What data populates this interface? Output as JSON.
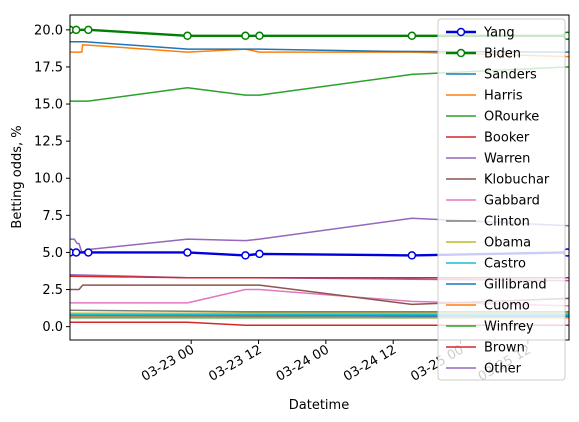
{
  "chart_data": {
    "type": "line",
    "xlabel": "Datetime",
    "ylabel": "Betting odds, %",
    "x_range": [
      "2019-03-22 02:24",
      "2019-03-25 19:20"
    ],
    "y_range": [
      -0.9,
      21.0
    ],
    "yticks": [
      {
        "value": 0.0,
        "label": "0.0"
      },
      {
        "value": 2.5,
        "label": "2.5"
      },
      {
        "value": 5.0,
        "label": "5.0"
      },
      {
        "value": 7.5,
        "label": "7.5"
      },
      {
        "value": 10.0,
        "label": "10.0"
      },
      {
        "value": 12.5,
        "label": "12.5"
      },
      {
        "value": 15.0,
        "label": "15.0"
      },
      {
        "value": 17.5,
        "label": "17.5"
      },
      {
        "value": 20.0,
        "label": "20.0"
      }
    ],
    "xticks": [
      {
        "value": "2019-03-23 00:00",
        "label": "03-23 00"
      },
      {
        "value": "2019-03-23 12:00",
        "label": "03-23 12"
      },
      {
        "value": "2019-03-24 00:00",
        "label": "03-24 00"
      },
      {
        "value": "2019-03-24 12:00",
        "label": "03-24 12"
      },
      {
        "value": "2019-03-25 00:00",
        "label": "03-25 00"
      },
      {
        "value": "2019-03-25 12:00",
        "label": "03-25 12"
      }
    ],
    "grid": false,
    "legend": "upper right",
    "series": [
      {
        "name": "Yang",
        "color": "#0000dd",
        "lw": 2.4,
        "markers": true,
        "x": [
          "2019-03-22 02:24",
          "2019-03-22 03:30",
          "2019-03-22 05:40",
          "2019-03-22 23:20",
          "2019-03-23 09:40",
          "2019-03-23 12:10",
          "2019-03-24 15:20",
          "2019-03-25 19:00"
        ],
        "y": [
          5.0,
          5.0,
          5.0,
          5.0,
          4.8,
          4.9,
          4.8,
          5.0
        ]
      },
      {
        "name": "Biden",
        "color": "#008000",
        "lw": 2.4,
        "markers": true,
        "x": [
          "2019-03-22 02:24",
          "2019-03-22 03:30",
          "2019-03-22 05:40",
          "2019-03-22 23:20",
          "2019-03-23 09:40",
          "2019-03-23 12:10",
          "2019-03-24 15:20",
          "2019-03-25 19:00"
        ],
        "y": [
          20.0,
          20.0,
          20.0,
          19.6,
          19.6,
          19.6,
          19.6,
          19.6
        ]
      },
      {
        "name": "Sanders",
        "color": "#1f77b4",
        "lw": 1.5,
        "markers": false,
        "x": [
          "2019-03-22 02:24",
          "2019-03-22 05:00",
          "2019-03-22 23:20",
          "2019-03-23 12:00",
          "2019-03-24 12:00",
          "2019-03-25 19:20"
        ],
        "y": [
          19.2,
          19.2,
          18.7,
          18.7,
          18.55,
          18.5
        ]
      },
      {
        "name": "Harris",
        "color": "#ff7f0e",
        "lw": 1.5,
        "markers": false,
        "x": [
          "2019-03-22 02:24",
          "2019-03-22 04:30",
          "2019-03-22 04:40",
          "2019-03-22 23:20",
          "2019-03-23 09:40",
          "2019-03-23 12:10",
          "2019-03-24 15:20",
          "2019-03-25 19:20"
        ],
        "y": [
          18.5,
          18.5,
          19.0,
          18.5,
          18.7,
          18.5,
          18.5,
          18.2
        ]
      },
      {
        "name": "ORourke",
        "color": "#2ca02c",
        "lw": 1.5,
        "markers": false,
        "x": [
          "2019-03-22 02:24",
          "2019-03-22 05:40",
          "2019-03-22 23:20",
          "2019-03-23 09:40",
          "2019-03-23 12:10",
          "2019-03-24 15:20",
          "2019-03-25 19:20"
        ],
        "y": [
          15.2,
          15.2,
          16.1,
          15.6,
          15.6,
          17.0,
          17.5
        ]
      },
      {
        "name": "Booker",
        "color": "#d62728",
        "lw": 1.5,
        "markers": false,
        "x": [
          "2019-03-22 02:24",
          "2019-03-22 23:20",
          "2019-03-23 09:40",
          "2019-03-25 19:20"
        ],
        "y": [
          3.4,
          3.3,
          3.3,
          3.3
        ]
      },
      {
        "name": "Warren",
        "color": "#9467bd",
        "lw": 1.5,
        "markers": false,
        "x": [
          "2019-03-22 02:24",
          "2019-03-22 23:20",
          "2019-03-23 09:40",
          "2019-03-24 15:20",
          "2019-03-25 19:20"
        ],
        "y": [
          3.5,
          3.3,
          3.3,
          3.2,
          3.1
        ]
      },
      {
        "name": "Klobuchar",
        "color": "#8c564b",
        "lw": 1.5,
        "markers": false,
        "x": [
          "2019-03-22 02:24",
          "2019-03-22 04:00",
          "2019-03-22 04:40",
          "2019-03-23 12:10",
          "2019-03-24 15:20",
          "2019-03-25 19:20"
        ],
        "y": [
          2.5,
          2.5,
          2.8,
          2.8,
          1.5,
          1.9
        ]
      },
      {
        "name": "Gabbard",
        "color": "#e377c2",
        "lw": 1.5,
        "markers": false,
        "x": [
          "2019-03-22 02:24",
          "2019-03-22 23:20",
          "2019-03-23 09:40",
          "2019-03-23 12:10",
          "2019-03-24 15:20",
          "2019-03-25 19:20"
        ],
        "y": [
          1.6,
          1.6,
          2.5,
          2.5,
          1.7,
          1.4
        ]
      },
      {
        "name": "Clinton",
        "color": "#7f7f7f",
        "lw": 1.5,
        "markers": false,
        "x": [
          "2019-03-22 02:24",
          "2019-03-23 09:40",
          "2019-03-25 19:20"
        ],
        "y": [
          1.1,
          1.0,
          1.0
        ]
      },
      {
        "name": "Obama",
        "color": "#bcbd22",
        "lw": 1.5,
        "markers": false,
        "x": [
          "2019-03-22 02:24",
          "2019-03-25 19:20"
        ],
        "y": [
          0.9,
          0.9
        ]
      },
      {
        "name": "Castro",
        "color": "#17becf",
        "lw": 1.5,
        "markers": false,
        "x": [
          "2019-03-22 02:24",
          "2019-03-25 19:20"
        ],
        "y": [
          0.8,
          0.8
        ]
      },
      {
        "name": "Gillibrand",
        "color": "#1f77b4",
        "lw": 1.5,
        "markers": false,
        "x": [
          "2019-03-22 02:24",
          "2019-03-25 19:20"
        ],
        "y": [
          0.75,
          0.7
        ]
      },
      {
        "name": "Cuomo",
        "color": "#ff7f0e",
        "lw": 1.5,
        "markers": false,
        "x": [
          "2019-03-22 02:24",
          "2019-03-25 19:20"
        ],
        "y": [
          0.65,
          0.6
        ]
      },
      {
        "name": "Winfrey",
        "color": "#2ca02c",
        "lw": 1.5,
        "markers": false,
        "x": [
          "2019-03-22 02:24",
          "2019-03-25 19:20"
        ],
        "y": [
          0.6,
          0.6
        ]
      },
      {
        "name": "Brown",
        "color": "#d62728",
        "lw": 1.5,
        "markers": false,
        "x": [
          "2019-03-22 02:24",
          "2019-03-22 23:20",
          "2019-03-23 09:40",
          "2019-03-25 19:20"
        ],
        "y": [
          0.3,
          0.3,
          0.1,
          0.1
        ]
      },
      {
        "name": "Other",
        "color": "#9467bd",
        "lw": 1.5,
        "markers": false,
        "x": [
          "2019-03-22 02:24",
          "2019-03-22 03:10",
          "2019-03-22 03:40",
          "2019-03-22 04:00",
          "2019-03-22 04:30",
          "2019-03-22 05:40",
          "2019-03-22 23:20",
          "2019-03-23 09:40",
          "2019-03-23 12:10",
          "2019-03-24 15:20",
          "2019-03-25 19:20"
        ],
        "y": [
          5.9,
          5.9,
          5.6,
          5.6,
          5.0,
          5.2,
          5.9,
          5.8,
          5.9,
          7.3,
          6.8
        ]
      }
    ]
  }
}
